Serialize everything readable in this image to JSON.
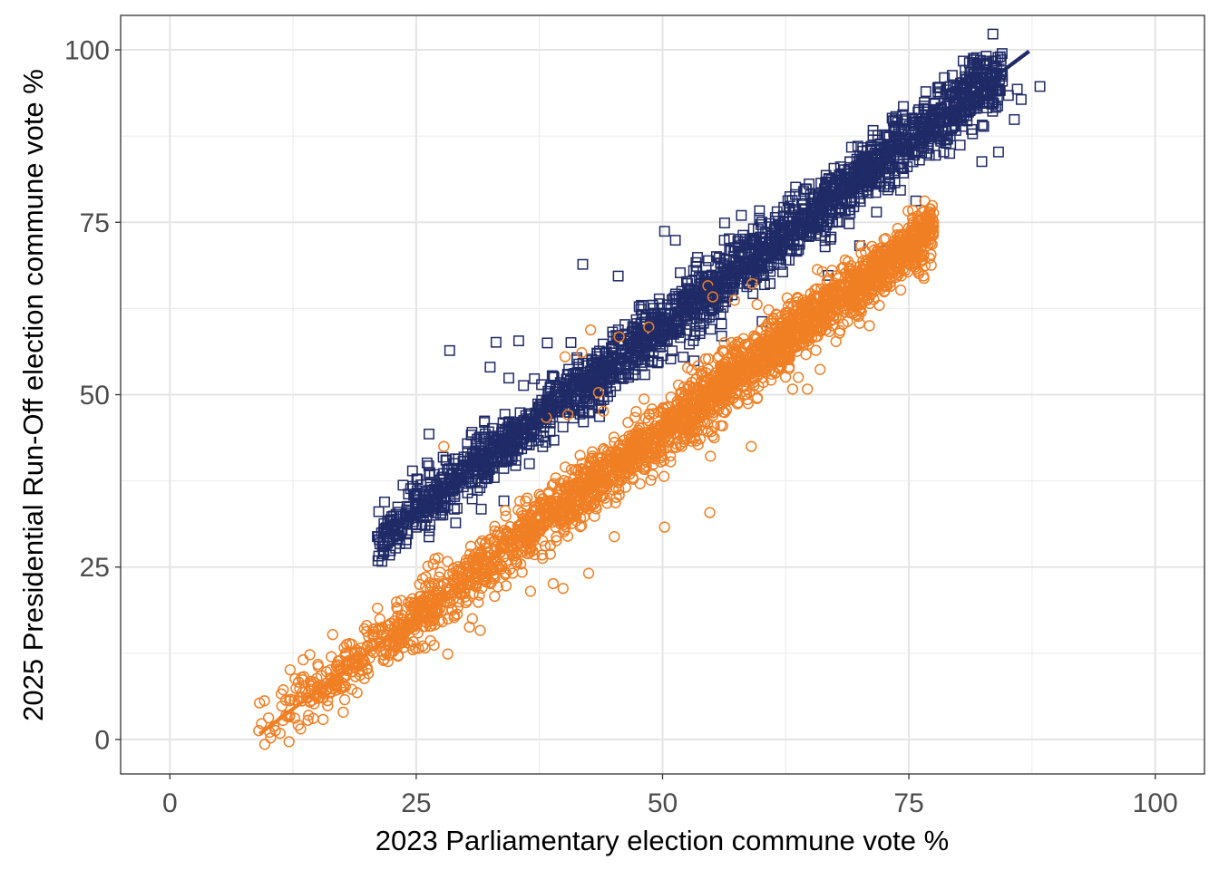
{
  "chart_data": {
    "type": "scatter",
    "title": "",
    "xlabel": "2023 Parliamentary election commune vote %",
    "ylabel": "2025 Presidential Run-Off election commune vote %",
    "xlim": [
      -5,
      105
    ],
    "ylim": [
      -5,
      105
    ],
    "x_ticks": [
      0,
      25,
      50,
      75,
      100
    ],
    "y_ticks": [
      0,
      25,
      50,
      75,
      100
    ],
    "x_tick_labels": [
      "0",
      "25",
      "50",
      "75",
      "100"
    ],
    "y_tick_labels": [
      "0",
      "25",
      "50",
      "75",
      "100"
    ],
    "grid": true,
    "legend": "none",
    "series": [
      {
        "marker": "square",
        "color": "#1f2a66",
        "trend_line": {
          "x": [
            21.3,
            87.2
          ],
          "y": [
            29.4,
            99.8
          ]
        },
        "cloud": {
          "x_range": [
            21,
            88.5
          ],
          "slope": 1.068,
          "intercept": 6.6,
          "approx_count": 2200
        },
        "points": [
          [
            21.2,
            26.6
          ],
          [
            88.3,
            94.7
          ],
          [
            86.0,
            94.3
          ],
          [
            85.1,
            93.4
          ],
          [
            86.4,
            92.8
          ],
          [
            85.7,
            89.9
          ],
          [
            83.5,
            91.1
          ],
          [
            84.1,
            85.2
          ],
          [
            73.3,
            90.1
          ],
          [
            33.1,
            57.6
          ],
          [
            28.4,
            56.4
          ],
          [
            38.3,
            57.5
          ],
          [
            35.4,
            57.8
          ],
          [
            41.9,
            68.9
          ],
          [
            45.5,
            67.2
          ],
          [
            51.3,
            72.4
          ],
          [
            50.2,
            73.7
          ],
          [
            58.0,
            76.0
          ],
          [
            56.3,
            74.9
          ],
          [
            63.5,
            80.1
          ],
          [
            66.6,
            81.8
          ],
          [
            26.3,
            44.3
          ],
          [
            24.1,
            33.8
          ],
          [
            26.1,
            40.1
          ],
          [
            32.5,
            54.0
          ],
          [
            34.4,
            52.4
          ],
          [
            37.1,
            47.2
          ],
          [
            48.2,
            52.9
          ],
          [
            53.2,
            54.9
          ],
          [
            60.1,
            60.6
          ],
          [
            31.6,
            33.4
          ],
          [
            33.9,
            34.6
          ],
          [
            29.0,
            31.4
          ],
          [
            70.0,
            71.6
          ],
          [
            72.2,
            70.8
          ],
          [
            66.8,
            67.3
          ],
          [
            62.1,
            70.9
          ],
          [
            80.2,
            86.2
          ],
          [
            82.4,
            83.8
          ],
          [
            75.7,
            78.1
          ],
          [
            64.2,
            76.0
          ],
          [
            69.0,
            80.2
          ],
          [
            54.0,
            64.3
          ],
          [
            56.0,
            58.5
          ],
          [
            44.0,
            49.7
          ]
        ]
      },
      {
        "marker": "circle",
        "color": "#f07f24",
        "trend_line": {
          "x": [
            9.1,
            76.7
          ],
          "y": [
            0.8,
            73.2
          ]
        },
        "cloud": {
          "x_range": [
            9,
            77.5
          ],
          "slope": 1.072,
          "intercept": -8.9,
          "approx_count": 2800
        },
        "points": [
          [
            9.1,
            5.3
          ],
          [
            9.6,
            5.6
          ],
          [
            11.5,
            7.2
          ],
          [
            11.3,
            6.6
          ],
          [
            12.8,
            7.4
          ],
          [
            12.2,
            10.1
          ],
          [
            13.6,
            9.1
          ],
          [
            14.2,
            12.3
          ],
          [
            77.2,
            73.5
          ],
          [
            75.6,
            73.0
          ],
          [
            72.5,
            69.7
          ],
          [
            71.5,
            68.5
          ],
          [
            71.0,
            60.0
          ],
          [
            27.8,
            42.5
          ],
          [
            28.2,
            12.4
          ],
          [
            38.2,
            46.7
          ],
          [
            40.1,
            55.5
          ],
          [
            41.8,
            56.1
          ],
          [
            42.7,
            59.4
          ],
          [
            45.6,
            58.4
          ],
          [
            48.6,
            59.8
          ],
          [
            54.6,
            65.8
          ],
          [
            55.1,
            64.2
          ],
          [
            57.3,
            63.7
          ],
          [
            59.1,
            66.1
          ],
          [
            53.9,
            48.8
          ],
          [
            59.0,
            42.5
          ],
          [
            54.8,
            32.9
          ],
          [
            50.2,
            30.8
          ],
          [
            48.8,
            37.6
          ],
          [
            45.1,
            29.4
          ],
          [
            42.5,
            24.1
          ],
          [
            39.9,
            21.9
          ],
          [
            38.9,
            22.6
          ],
          [
            31.5,
            15.8
          ],
          [
            30.4,
            16.3
          ],
          [
            63.2,
            50.8
          ],
          [
            64.7,
            50.8
          ],
          [
            67.6,
            57.7
          ],
          [
            49.8,
            44.4
          ],
          [
            43.5,
            50.3
          ],
          [
            44.0,
            47.6
          ],
          [
            40.4,
            47.1
          ],
          [
            36.6,
            21.5
          ],
          [
            30.7,
            17.5
          ]
        ]
      }
    ]
  }
}
